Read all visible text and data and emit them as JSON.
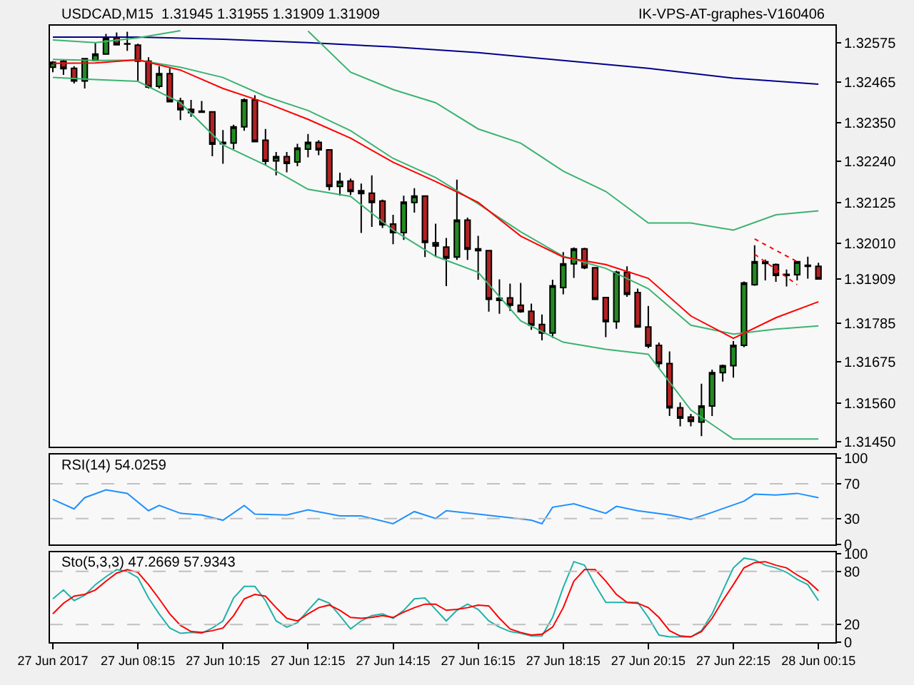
{
  "chart_data": [
    {
      "type": "candlestick",
      "title": "USDCAD,M15  1.31945 1.31955 1.31909 1.31909",
      "annotations": [
        "IK-VPS-AT-graphes-V160406"
      ],
      "x": [
        "2017-06-27T06:15",
        "2017-06-27T06:30",
        "2017-06-27T06:45",
        "2017-06-27T07:00",
        "2017-06-27T07:15",
        "2017-06-27T07:30",
        "2017-06-27T07:45",
        "2017-06-27T08:00",
        "2017-06-27T08:15",
        "2017-06-27T08:30",
        "2017-06-27T08:45",
        "2017-06-27T09:00",
        "2017-06-27T09:15",
        "2017-06-27T09:30",
        "2017-06-27T09:45",
        "2017-06-27T10:00",
        "2017-06-27T10:15",
        "2017-06-27T10:30",
        "2017-06-27T10:45",
        "2017-06-27T11:00",
        "2017-06-27T11:15",
        "2017-06-27T11:30",
        "2017-06-27T11:45",
        "2017-06-27T12:00",
        "2017-06-27T12:15",
        "2017-06-27T12:30",
        "2017-06-27T12:45",
        "2017-06-27T13:00",
        "2017-06-27T13:15",
        "2017-06-27T13:30",
        "2017-06-27T13:45",
        "2017-06-27T14:00",
        "2017-06-27T14:15",
        "2017-06-27T14:30",
        "2017-06-27T14:45",
        "2017-06-27T15:00",
        "2017-06-27T15:15",
        "2017-06-27T15:30",
        "2017-06-27T15:45",
        "2017-06-27T16:00",
        "2017-06-27T16:15",
        "2017-06-27T16:30",
        "2017-06-27T16:45",
        "2017-06-27T17:00",
        "2017-06-27T17:15",
        "2017-06-27T17:30",
        "2017-06-27T17:45",
        "2017-06-27T18:00",
        "2017-06-27T18:15",
        "2017-06-27T18:30",
        "2017-06-27T18:45",
        "2017-06-27T19:00",
        "2017-06-27T19:15",
        "2017-06-27T19:30",
        "2017-06-27T19:45",
        "2017-06-27T20:00",
        "2017-06-27T20:15",
        "2017-06-27T20:30",
        "2017-06-27T20:45",
        "2017-06-27T21:00",
        "2017-06-27T21:15",
        "2017-06-27T21:30",
        "2017-06-27T21:45",
        "2017-06-27T22:00",
        "2017-06-27T22:15",
        "2017-06-27T22:30",
        "2017-06-27T22:45",
        "2017-06-27T23:00",
        "2017-06-27T23:15",
        "2017-06-27T23:30",
        "2017-06-27T23:45",
        "2017-06-28T00:00",
        "2017-06-28T00:15"
      ],
      "ohlc": [
        [
          1.32506,
          1.32523,
          1.32492,
          1.3252
        ],
        [
          1.32523,
          1.32527,
          1.32484,
          1.32502
        ],
        [
          1.32503,
          1.32509,
          1.3246,
          1.32467
        ],
        [
          1.32467,
          1.32532,
          1.32446,
          1.3253
        ],
        [
          1.32525,
          1.32574,
          1.32525,
          1.32543
        ],
        [
          1.32543,
          1.326,
          1.32543,
          1.32589
        ],
        [
          1.32589,
          1.32604,
          1.32569,
          1.32569
        ],
        [
          1.32572,
          1.32606,
          1.32552,
          1.32571
        ],
        [
          1.32568,
          1.32572,
          1.32466,
          1.32523
        ],
        [
          1.32523,
          1.32534,
          1.32446,
          1.3245
        ],
        [
          1.32452,
          1.32509,
          1.32446,
          1.32488
        ],
        [
          1.32488,
          1.32503,
          1.32409,
          1.32409
        ],
        [
          1.32411,
          1.3242,
          1.32357,
          1.32386
        ],
        [
          1.32387,
          1.32414,
          1.32366,
          1.32378
        ],
        [
          1.32382,
          1.32411,
          1.32378,
          1.32379
        ],
        [
          1.3238,
          1.3238,
          1.32255,
          1.32289
        ],
        [
          1.3229,
          1.32329,
          1.32234,
          1.32294
        ],
        [
          1.32292,
          1.32344,
          1.32275,
          1.32338
        ],
        [
          1.32338,
          1.32418,
          1.32327,
          1.32414
        ],
        [
          1.32414,
          1.32427,
          1.32296,
          1.32296
        ],
        [
          1.323,
          1.32332,
          1.3223,
          1.32241
        ],
        [
          1.32242,
          1.32267,
          1.32201,
          1.32254
        ],
        [
          1.32254,
          1.32267,
          1.3221,
          1.32235
        ],
        [
          1.32239,
          1.3229,
          1.32227,
          1.32278
        ],
        [
          1.32275,
          1.32318,
          1.32252,
          1.32294
        ],
        [
          1.32294,
          1.323,
          1.32258,
          1.32273
        ],
        [
          1.32273,
          1.32273,
          1.32159,
          1.3217
        ],
        [
          1.3217,
          1.32209,
          1.32144,
          1.32184
        ],
        [
          1.32185,
          1.32192,
          1.32146,
          1.32156
        ],
        [
          1.32158,
          1.32178,
          1.32039,
          1.3215
        ],
        [
          1.32151,
          1.32201,
          1.32056,
          1.32125
        ],
        [
          1.32129,
          1.32133,
          1.32053,
          1.32062
        ],
        [
          1.32064,
          1.3209,
          1.32007,
          1.3204
        ],
        [
          1.3204,
          1.32144,
          1.32019,
          1.32126
        ],
        [
          1.32125,
          1.32165,
          1.32096,
          1.32143
        ],
        [
          1.32143,
          1.32143,
          1.31971,
          1.32012
        ],
        [
          1.32011,
          1.32065,
          1.31971,
          1.32002
        ],
        [
          1.31999,
          1.32025,
          1.31889,
          1.31968
        ],
        [
          1.31971,
          1.32189,
          1.31963,
          1.32075
        ],
        [
          1.32075,
          1.32082,
          1.31963,
          1.31993
        ],
        [
          1.31994,
          1.32031,
          1.31907,
          1.31989
        ],
        [
          1.31989,
          1.31989,
          1.31817,
          1.31852
        ],
        [
          1.31849,
          1.31908,
          1.31811,
          1.31855
        ],
        [
          1.31856,
          1.31896,
          1.31819,
          1.31835
        ],
        [
          1.31835,
          1.31898,
          1.31814,
          1.31817
        ],
        [
          1.31818,
          1.3184,
          1.31766,
          1.31779
        ],
        [
          1.31781,
          1.31809,
          1.31736,
          1.31757
        ],
        [
          1.31757,
          1.31907,
          1.31743,
          1.3189
        ],
        [
          1.31885,
          1.31985,
          1.31866,
          1.31952
        ],
        [
          1.31952,
          1.31998,
          1.31912,
          1.31994
        ],
        [
          1.31994,
          1.31997,
          1.31937,
          1.31941
        ],
        [
          1.31941,
          1.31943,
          1.3185,
          1.31852
        ],
        [
          1.31857,
          1.31857,
          1.31745,
          1.31789
        ],
        [
          1.31789,
          1.31932,
          1.31769,
          1.31928
        ],
        [
          1.31928,
          1.31945,
          1.31859,
          1.31866
        ],
        [
          1.31871,
          1.31882,
          1.31774,
          1.31774
        ],
        [
          1.31774,
          1.31833,
          1.31714,
          1.3172
        ],
        [
          1.31722,
          1.3173,
          1.3166,
          1.31671
        ],
        [
          1.31671,
          1.31705,
          1.31523,
          1.31546
        ],
        [
          1.31546,
          1.31561,
          1.31494,
          1.31517
        ],
        [
          1.3152,
          1.31529,
          1.31494,
          1.31508
        ],
        [
          1.31506,
          1.31614,
          1.31466,
          1.31551
        ],
        [
          1.31551,
          1.31654,
          1.31523,
          1.31645
        ],
        [
          1.31645,
          1.31668,
          1.3162,
          1.31665
        ],
        [
          1.31665,
          1.31734,
          1.31631,
          1.31722
        ],
        [
          1.31722,
          1.31902,
          1.31717,
          1.31898
        ],
        [
          1.31893,
          1.32004,
          1.3189,
          1.31958
        ],
        [
          1.31958,
          1.31964,
          1.31905,
          1.31953
        ],
        [
          1.3195,
          1.31953,
          1.31901,
          1.31919
        ],
        [
          1.31922,
          1.31936,
          1.31888,
          1.31919
        ],
        [
          1.31921,
          1.31958,
          1.31905,
          1.31958
        ],
        [
          1.31945,
          1.31972,
          1.3191,
          1.31948
        ],
        [
          1.31945,
          1.31955,
          1.31909,
          1.31909
        ]
      ],
      "series": [
        {
          "type": "line",
          "color": "#00008b",
          "x": [
            "2017-06-27T06:15",
            "2017-06-27T08:15",
            "2017-06-27T10:15",
            "2017-06-27T12:15",
            "2017-06-27T14:15",
            "2017-06-27T16:15",
            "2017-06-27T18:15",
            "2017-06-27T20:15",
            "2017-06-27T22:15",
            "2017-06-28T00:15"
          ],
          "values": [
            1.32591,
            1.32591,
            1.32585,
            1.32575,
            1.32563,
            1.32547,
            1.32525,
            1.32503,
            1.32475,
            1.32458
          ]
        },
        {
          "type": "line",
          "color": "#3cb371",
          "x": [
            "2017-06-27T06:15",
            "2017-06-27T07:15",
            "2017-06-27T08:15",
            "2017-06-27T09:15",
            "2017-06-27T10:15",
            "2017-06-27T11:15",
            "2017-06-27T12:15",
            "2017-06-27T13:15",
            "2017-06-27T14:15",
            "2017-06-27T15:15",
            "2017-06-27T16:15",
            "2017-06-27T17:15",
            "2017-06-27T18:15",
            "2017-06-27T19:15",
            "2017-06-27T20:15",
            "2017-06-27T21:15",
            "2017-06-27T22:15",
            "2017-06-27T23:15",
            "2017-06-28T00:15"
          ],
          "values": [
            1.32583,
            1.32575,
            1.32589,
            1.32609,
            null,
            null,
            1.32608,
            1.32492,
            1.32443,
            1.32406,
            1.32332,
            1.32292,
            1.32213,
            1.32156,
            1.32067,
            1.32067,
            1.32047,
            1.3209,
            1.32101
          ]
        },
        {
          "type": "line",
          "color": "#3cb371",
          "x": [
            "2017-06-27T06:15",
            "2017-06-27T07:15",
            "2017-06-27T08:15",
            "2017-06-27T09:15",
            "2017-06-27T10:15",
            "2017-06-27T11:15",
            "2017-06-27T12:15",
            "2017-06-27T13:15",
            "2017-06-27T14:15",
            "2017-06-27T15:15",
            "2017-06-27T16:15",
            "2017-06-27T17:15",
            "2017-06-27T18:15",
            "2017-06-27T19:15",
            "2017-06-27T20:15",
            "2017-06-27T21:15",
            "2017-06-27T22:15",
            "2017-06-27T23:15",
            "2017-06-28T00:15"
          ],
          "values": [
            1.32528,
            1.32525,
            1.32526,
            1.32506,
            1.32477,
            1.32424,
            1.32384,
            1.32327,
            1.32249,
            1.32195,
            1.32121,
            1.32042,
            1.31973,
            1.31939,
            1.31882,
            1.31779,
            1.31754,
            1.31768,
            1.31777
          ]
        },
        {
          "type": "line",
          "color": "#3cb371",
          "x": [
            "2017-06-27T06:15",
            "2017-06-27T07:15",
            "2017-06-27T08:15",
            "2017-06-27T09:15",
            "2017-06-27T10:15",
            "2017-06-27T11:15",
            "2017-06-27T12:15",
            "2017-06-27T13:15",
            "2017-06-27T14:15",
            "2017-06-27T15:15",
            "2017-06-27T16:15",
            "2017-06-27T17:15",
            "2017-06-27T18:15",
            "2017-06-27T19:15",
            "2017-06-27T20:15",
            "2017-06-27T21:15",
            "2017-06-27T22:15",
            "2017-06-27T23:15",
            "2017-06-28T00:15"
          ],
          "values": [
            1.32477,
            1.32471,
            1.32466,
            1.32406,
            1.32287,
            1.3223,
            1.32162,
            1.32142,
            1.32047,
            1.31973,
            1.31928,
            1.31791,
            1.31731,
            1.31711,
            1.31697,
            1.3154,
            1.31458,
            1.31458,
            1.31458
          ]
        },
        {
          "type": "line",
          "color": "#ff0000",
          "x": [
            "2017-06-27T06:15",
            "2017-06-27T07:15",
            "2017-06-27T08:15",
            "2017-06-27T09:15",
            "2017-06-27T10:15",
            "2017-06-27T11:15",
            "2017-06-27T12:15",
            "2017-06-27T13:15",
            "2017-06-27T14:15",
            "2017-06-27T15:15",
            "2017-06-27T16:15",
            "2017-06-27T17:15",
            "2017-06-27T18:15",
            "2017-06-27T19:15",
            "2017-06-27T20:15",
            "2017-06-27T21:15",
            "2017-06-27T22:15",
            "2017-06-27T23:15",
            "2017-06-28T00:15"
          ],
          "values": [
            1.32517,
            1.32518,
            1.32527,
            1.32498,
            1.32446,
            1.32406,
            1.32359,
            1.32306,
            1.32238,
            1.32184,
            1.32125,
            1.3203,
            1.31971,
            1.3195,
            1.31911,
            1.31805,
            1.31742,
            1.318,
            1.31845
          ]
        },
        {
          "type": "line",
          "color": "#ff0000",
          "line_style": "dotted",
          "x": [
            "2017-06-27T22:45",
            "2017-06-27T23:45"
          ],
          "values": [
            1.32022,
            1.31958
          ]
        },
        {
          "type": "line",
          "color": "#ff0000",
          "line_style": "dotted",
          "x": [
            "2017-06-27T22:45",
            "2017-06-27T23:45"
          ],
          "values": [
            1.31979,
            1.31893
          ]
        }
      ],
      "xlim": [
        "2017-06-27T06:11",
        "2017-06-28T00:39"
      ],
      "ylim": [
        1.31436,
        1.32623
      ],
      "yticks": [
        {
          "value": 1.32575,
          "label": "1.32575"
        },
        {
          "value": 1.32465,
          "label": "1.32465"
        },
        {
          "value": 1.3235,
          "label": "1.32350"
        },
        {
          "value": 1.3224,
          "label": "1.32240"
        },
        {
          "value": 1.32125,
          "label": "1.32125"
        },
        {
          "value": 1.3201,
          "label": "1.32010"
        },
        {
          "value": 1.31909,
          "label": "1.31909"
        },
        {
          "value": 1.31785,
          "label": "1.31785"
        },
        {
          "value": 1.31675,
          "label": "1.31675"
        },
        {
          "value": 1.3156,
          "label": "1.31560"
        },
        {
          "value": 1.3145,
          "label": "1.31450"
        }
      ],
      "tick_labels": "y"
    },
    {
      "type": "line",
      "title": "RSI(14) 54.0259",
      "series": [
        {
          "color": "#1e90ff",
          "x": [
            "2017-06-27T06:15",
            "2017-06-27T06:45",
            "2017-06-27T07:00",
            "2017-06-27T07:30",
            "2017-06-27T08:00",
            "2017-06-27T08:30",
            "2017-06-27T08:45",
            "2017-06-27T09:15",
            "2017-06-27T09:45",
            "2017-06-27T10:15",
            "2017-06-27T10:45",
            "2017-06-27T11:00",
            "2017-06-27T11:45",
            "2017-06-27T12:15",
            "2017-06-27T13:00",
            "2017-06-27T13:30",
            "2017-06-27T14:15",
            "2017-06-27T14:45",
            "2017-06-27T15:15",
            "2017-06-27T15:30",
            "2017-06-27T16:15",
            "2017-06-27T17:30",
            "2017-06-27T17:45",
            "2017-06-27T18:00",
            "2017-06-27T18:30",
            "2017-06-27T19:15",
            "2017-06-27T19:30",
            "2017-06-27T20:00",
            "2017-06-27T20:45",
            "2017-06-27T21:15",
            "2017-06-27T21:45",
            "2017-06-27T22:30",
            "2017-06-27T22:45",
            "2017-06-27T23:15",
            "2017-06-27T23:45",
            "2017-06-28T00:15"
          ],
          "values": [
            52,
            41,
            54,
            63,
            59,
            39,
            45,
            36,
            34,
            28,
            45,
            35,
            34,
            40,
            33,
            33,
            24,
            38,
            30,
            39,
            35,
            28,
            24,
            43,
            47,
            36,
            44,
            39,
            34,
            29,
            37,
            50,
            58,
            57,
            59,
            54
          ]
        }
      ],
      "xlim": [
        "2017-06-27T06:11",
        "2017-06-28T00:39"
      ],
      "ylim": [
        0,
        104
      ],
      "yticks": [
        100,
        70,
        30,
        0
      ],
      "ref_lines": [
        {
          "axis": "y",
          "value": 70,
          "color": "#c0c0c0",
          "line_style": "dashed"
        },
        {
          "axis": "y",
          "value": 30,
          "color": "#c0c0c0",
          "line_style": "dashed"
        }
      ],
      "tick_labels": "y"
    },
    {
      "type": "line",
      "title": "Sto(5,3,3) 47.2669 57.9343",
      "x": [
        "2017-06-27T06:15",
        "2017-06-27T06:30",
        "2017-06-27T06:45",
        "2017-06-27T07:00",
        "2017-06-27T07:15",
        "2017-06-27T07:30",
        "2017-06-27T07:45",
        "2017-06-27T08:00",
        "2017-06-27T08:15",
        "2017-06-27T08:30",
        "2017-06-27T08:45",
        "2017-06-27T09:00",
        "2017-06-27T09:15",
        "2017-06-27T09:30",
        "2017-06-27T09:45",
        "2017-06-27T10:00",
        "2017-06-27T10:15",
        "2017-06-27T10:30",
        "2017-06-27T10:45",
        "2017-06-27T11:00",
        "2017-06-27T11:15",
        "2017-06-27T11:30",
        "2017-06-27T11:45",
        "2017-06-27T12:00",
        "2017-06-27T12:15",
        "2017-06-27T12:30",
        "2017-06-27T12:45",
        "2017-06-27T13:00",
        "2017-06-27T13:15",
        "2017-06-27T13:30",
        "2017-06-27T13:45",
        "2017-06-27T14:00",
        "2017-06-27T14:15",
        "2017-06-27T14:30",
        "2017-06-27T14:45",
        "2017-06-27T15:00",
        "2017-06-27T15:15",
        "2017-06-27T15:30",
        "2017-06-27T15:45",
        "2017-06-27T16:00",
        "2017-06-27T16:15",
        "2017-06-27T16:30",
        "2017-06-27T16:45",
        "2017-06-27T17:00",
        "2017-06-27T17:15",
        "2017-06-27T17:30",
        "2017-06-27T17:45",
        "2017-06-27T18:00",
        "2017-06-27T18:15",
        "2017-06-27T18:30",
        "2017-06-27T18:45",
        "2017-06-27T19:00",
        "2017-06-27T19:15",
        "2017-06-27T19:30",
        "2017-06-27T19:45",
        "2017-06-27T20:00",
        "2017-06-27T20:15",
        "2017-06-27T20:30",
        "2017-06-27T20:45",
        "2017-06-27T21:00",
        "2017-06-27T21:15",
        "2017-06-27T21:30",
        "2017-06-27T21:45",
        "2017-06-27T22:00",
        "2017-06-27T22:15",
        "2017-06-27T22:30",
        "2017-06-27T22:45",
        "2017-06-27T23:00",
        "2017-06-27T23:15",
        "2017-06-27T23:30",
        "2017-06-27T23:45",
        "2017-06-28T00:00",
        "2017-06-28T00:15"
      ],
      "series": [
        {
          "color": "#20b2aa",
          "values": [
            49,
            59,
            47,
            53,
            65,
            74,
            82,
            80,
            73,
            50,
            32,
            16,
            10,
            11,
            10,
            16,
            24,
            50,
            63,
            63,
            47,
            24,
            17,
            22,
            36,
            49,
            44,
            30,
            15,
            24,
            30,
            32,
            27,
            36,
            49,
            50,
            37,
            24,
            36,
            43,
            37,
            24,
            17,
            12,
            10,
            7,
            7,
            28,
            62,
            91,
            87,
            65,
            45,
            45,
            45,
            45,
            28,
            8,
            6,
            6,
            6,
            13,
            32,
            58,
            84,
            95,
            93,
            87,
            84,
            79,
            71,
            65,
            47
          ]
        },
        {
          "color": "#ff0000",
          "values": [
            32,
            44,
            52,
            54,
            59,
            69,
            78,
            82,
            79,
            65,
            49,
            32,
            19,
            12,
            11,
            13,
            16,
            30,
            49,
            54,
            52,
            39,
            27,
            24,
            32,
            39,
            42,
            36,
            28,
            27,
            28,
            30,
            28,
            34,
            39,
            43,
            43,
            36,
            37,
            39,
            42,
            41,
            27,
            15,
            11,
            8,
            9,
            17,
            39,
            69,
            82,
            82,
            69,
            54,
            45,
            44,
            39,
            28,
            13,
            7,
            6,
            12,
            27,
            47,
            65,
            84,
            90,
            91,
            87,
            84,
            76,
            69,
            58
          ]
        }
      ],
      "xlim": [
        "2017-06-27T06:11",
        "2017-06-28T00:39"
      ],
      "xticks": [
        {
          "value": "2017-06-27T06:15",
          "label": "27 Jun 2017"
        },
        {
          "value": "2017-06-27T08:15",
          "label": "27 Jun 08:15"
        },
        {
          "value": "2017-06-27T10:15",
          "label": "27 Jun 10:15"
        },
        {
          "value": "2017-06-27T12:15",
          "label": "27 Jun 12:15"
        },
        {
          "value": "2017-06-27T14:15",
          "label": "27 Jun 14:15"
        },
        {
          "value": "2017-06-27T16:15",
          "label": "27 Jun 16:15"
        },
        {
          "value": "2017-06-27T18:15",
          "label": "27 Jun 18:15"
        },
        {
          "value": "2017-06-27T20:15",
          "label": "27 Jun 20:15"
        },
        {
          "value": "2017-06-27T22:15",
          "label": "27 Jun 22:15"
        },
        {
          "value": "2017-06-28T00:15",
          "label": "28 Jun 00:15"
        }
      ],
      "ylim": [
        0,
        102
      ],
      "yticks": [
        100,
        80,
        20,
        0
      ],
      "ref_lines": [
        {
          "axis": "y",
          "value": 80,
          "color": "#c0c0c0",
          "line_style": "dashed"
        },
        {
          "axis": "y",
          "value": 20,
          "color": "#c0c0c0",
          "line_style": "dashed"
        }
      ]
    }
  ]
}
